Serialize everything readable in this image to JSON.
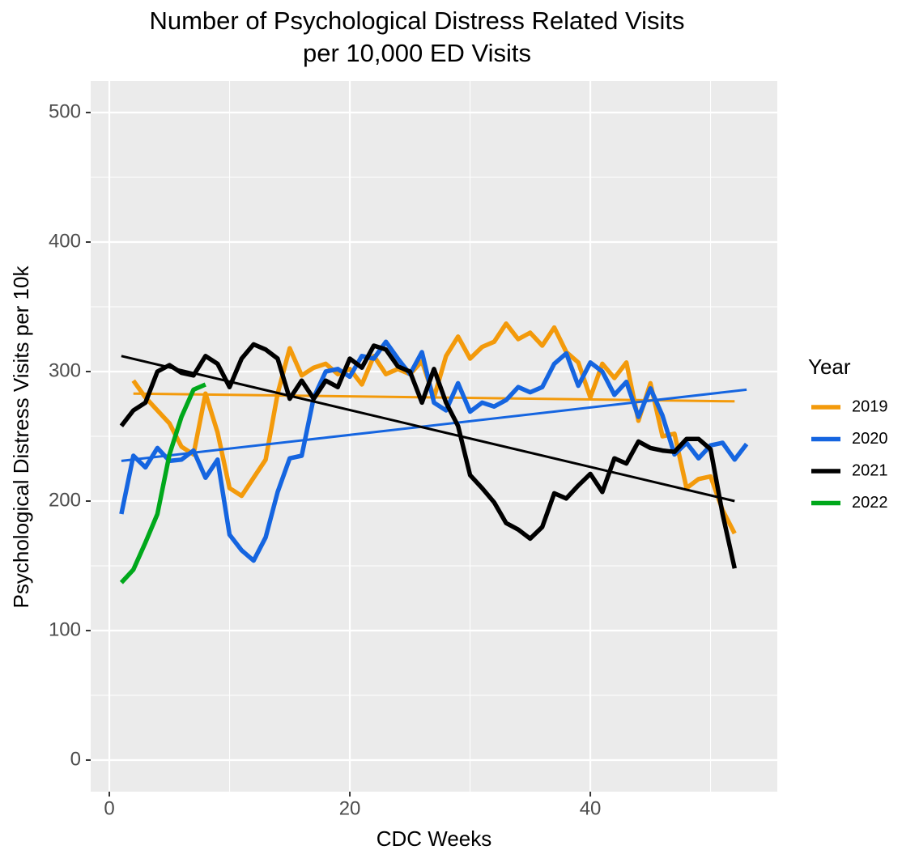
{
  "chart_data": {
    "type": "line",
    "title": "Number of Psychological Distress Related Visits\nper 10,000 ED Visits",
    "x_label": "CDC Weeks",
    "y_label": "Psychological Distress Visits per 10k",
    "xlim": [
      -1.55,
      55.55
    ],
    "xticks": [
      0,
      20,
      40
    ],
    "ylim": [
      -24.4,
      524.4
    ],
    "yticks": [
      0,
      100,
      200,
      300,
      400,
      500
    ],
    "grid": true,
    "minor_grid": true,
    "legend_title": "Year",
    "legend_position": "right",
    "series": [
      {
        "name": "2019",
        "color": "#f39a0b",
        "x": [
          2,
          3,
          4,
          5,
          6,
          7,
          8,
          9,
          10,
          11,
          12,
          13,
          14,
          15,
          16,
          17,
          18,
          19,
          20,
          21,
          22,
          23,
          24,
          25,
          26,
          27,
          28,
          29,
          30,
          31,
          32,
          33,
          34,
          35,
          36,
          37,
          38,
          39,
          40,
          41,
          42,
          43,
          44,
          45,
          46,
          47,
          48,
          49,
          50,
          51,
          52
        ],
        "values": [
          293,
          280,
          270,
          260,
          242,
          236,
          283,
          253,
          210,
          204,
          218,
          232,
          283,
          318,
          297,
          303,
          306,
          298,
          302,
          290,
          312,
          298,
          302,
          298,
          308,
          280,
          312,
          327,
          310,
          319,
          323,
          337,
          325,
          330,
          320,
          334,
          315,
          307,
          280,
          306,
          295,
          307,
          262,
          291,
          250,
          252,
          210,
          217,
          219,
          193,
          175
        ],
        "trend": {
          "x": [
            2,
            52
          ],
          "values": [
            283,
            277
          ]
        }
      },
      {
        "name": "2020",
        "color": "#1565e0",
        "x": [
          1,
          2,
          3,
          4,
          5,
          6,
          7,
          8,
          9,
          10,
          11,
          12,
          13,
          14,
          15,
          16,
          17,
          18,
          19,
          20,
          21,
          22,
          23,
          24,
          25,
          26,
          27,
          28,
          29,
          30,
          31,
          32,
          33,
          34,
          35,
          36,
          37,
          38,
          39,
          40,
          41,
          42,
          43,
          44,
          45,
          46,
          47,
          48,
          49,
          50,
          51,
          52,
          53
        ],
        "values": [
          190,
          235,
          226,
          241,
          231,
          232,
          239,
          218,
          232,
          174,
          162,
          154,
          172,
          207,
          233,
          235,
          280,
          300,
          302,
          296,
          312,
          310,
          323,
          310,
          298,
          315,
          276,
          270,
          291,
          269,
          276,
          273,
          278,
          288,
          284,
          288,
          306,
          314,
          289,
          307,
          300,
          282,
          292,
          265,
          287,
          266,
          236,
          245,
          233,
          243,
          245,
          232,
          244
        ],
        "trend": {
          "x": [
            1,
            53
          ],
          "values": [
            231,
            286
          ]
        }
      },
      {
        "name": "2021",
        "color": "#000000",
        "x": [
          1,
          2,
          3,
          4,
          5,
          6,
          7,
          8,
          9,
          10,
          11,
          12,
          13,
          14,
          15,
          16,
          17,
          18,
          19,
          20,
          21,
          22,
          23,
          24,
          25,
          26,
          27,
          28,
          29,
          30,
          31,
          32,
          33,
          34,
          35,
          36,
          37,
          38,
          39,
          40,
          41,
          42,
          43,
          44,
          45,
          46,
          47,
          48,
          49,
          50,
          51,
          52
        ],
        "values": [
          258,
          270,
          276,
          300,
          305,
          299,
          297,
          312,
          306,
          288,
          310,
          321,
          317,
          310,
          279,
          293,
          279,
          293,
          288,
          310,
          303,
          320,
          317,
          304,
          300,
          276,
          302,
          276,
          258,
          220,
          210,
          199,
          183,
          178,
          171,
          180,
          206,
          202,
          212,
          221,
          207,
          233,
          229,
          246,
          241,
          239,
          238,
          248,
          248,
          240,
          190,
          148
        ],
        "trend": {
          "x": [
            1,
            52
          ],
          "values": [
            312,
            200
          ]
        }
      },
      {
        "name": "2022",
        "color": "#00a81b",
        "x": [
          1,
          2,
          3,
          4,
          5,
          6,
          7,
          8
        ],
        "values": [
          137,
          147,
          168,
          190,
          236,
          265,
          286,
          290
        ]
      }
    ]
  }
}
